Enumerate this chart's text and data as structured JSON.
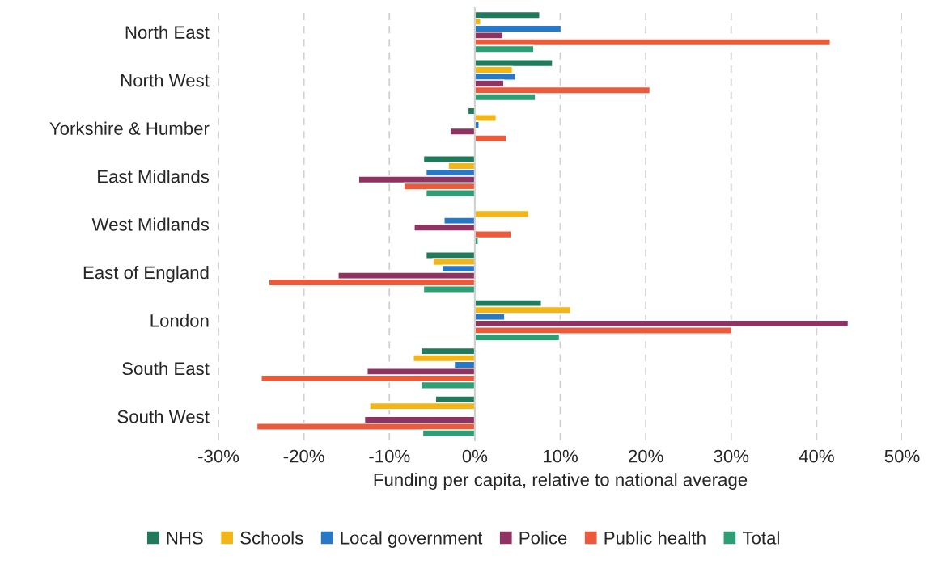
{
  "chart_data": {
    "type": "bar",
    "orientation": "horizontal",
    "xlabel": "Funding per capita, relative to national average",
    "categories": [
      "North East",
      "North West",
      "Yorkshire & Humber",
      "East Midlands",
      "West Midlands",
      "East of England",
      "London",
      "South East",
      "South West"
    ],
    "series": [
      {
        "name": "NHS",
        "color": "#217a5b",
        "values": [
          7.6,
          9.1,
          -0.8,
          -6.0,
          null,
          -5.7,
          7.8,
          -6.3,
          -4.6
        ]
      },
      {
        "name": "Schools",
        "color": "#f2b619",
        "values": [
          0.7,
          4.4,
          2.5,
          -3.1,
          6.3,
          -4.9,
          11.2,
          -7.2,
          -12.3
        ]
      },
      {
        "name": "Local government",
        "color": "#2878c8",
        "values": [
          10.1,
          4.8,
          0.5,
          -5.7,
          -3.6,
          -3.8,
          3.5,
          -2.4,
          null
        ]
      },
      {
        "name": "Police",
        "color": "#8e3362",
        "values": [
          3.3,
          3.4,
          -2.9,
          -13.6,
          -7.1,
          -16.0,
          43.7,
          -12.6,
          -12.9
        ]
      },
      {
        "name": "Public health",
        "color": "#ec5a3c",
        "values": [
          41.6,
          20.5,
          3.7,
          -8.3,
          4.3,
          -24.1,
          30.1,
          -25.0,
          -25.5
        ]
      },
      {
        "name": "Total",
        "color": "#2e9e74",
        "values": [
          6.9,
          7.1,
          null,
          -5.7,
          0.4,
          -6.0,
          9.9,
          -6.3,
          -6.1
        ]
      }
    ],
    "xlim": [
      -30,
      50
    ],
    "xticks": [
      {
        "value": -30,
        "label": "-30%"
      },
      {
        "value": -20,
        "label": "-20%"
      },
      {
        "value": -10,
        "label": "-10%"
      },
      {
        "value": 0,
        "label": "0%"
      },
      {
        "value": 10,
        "label": "10%"
      },
      {
        "value": 20,
        "label": "20%"
      },
      {
        "value": 30,
        "label": "30%"
      },
      {
        "value": 40,
        "label": "40%"
      },
      {
        "value": 50,
        "label": "50%"
      }
    ],
    "grid": "x",
    "legend": "bottom"
  }
}
